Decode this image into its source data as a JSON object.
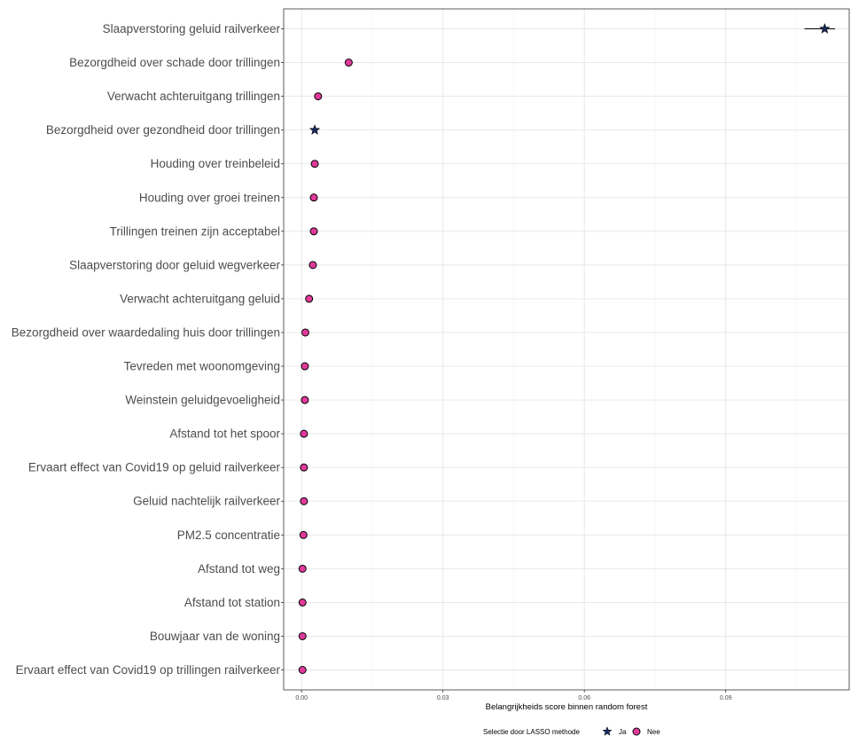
{
  "chart_data": {
    "type": "scatter",
    "xlabel": "Belangrijkheids score binnen random forest",
    "xlim": [
      -0.0038,
      0.1162
    ],
    "x_ticks": [
      0.0,
      0.03,
      0.06,
      0.09
    ],
    "x_tick_labels": [
      "0.00",
      "0.03",
      "0.06",
      "0.09"
    ],
    "grid": true,
    "legend": {
      "title": "Selectie door LASSO methode",
      "position": "bottom",
      "entries": [
        {
          "label": "Ja",
          "shape": "star",
          "color": "#1b2a5e"
        },
        {
          "label": "Nee",
          "shape": "circle",
          "color": "#e0399a"
        }
      ]
    },
    "points": [
      {
        "label": "Slaapverstoring geluid railverkeer",
        "x": 0.111,
        "lasso": "Ja",
        "err": [
          0.1067,
          0.1132
        ]
      },
      {
        "label": "Bezorgdheid over schade door trillingen",
        "x": 0.01,
        "lasso": "Nee"
      },
      {
        "label": "Verwacht achteruitgang trillingen",
        "x": 0.0035,
        "lasso": "Nee"
      },
      {
        "label": "Bezorgdheid over gezondheid door trillingen",
        "x": 0.0028,
        "lasso": "Ja"
      },
      {
        "label": "Houding over treinbeleid",
        "x": 0.0028,
        "lasso": "Nee"
      },
      {
        "label": "Houding over groei treinen",
        "x": 0.0026,
        "lasso": "Nee"
      },
      {
        "label": "Trillingen treinen zijn acceptabel",
        "x": 0.0026,
        "lasso": "Nee"
      },
      {
        "label": "Slaapverstoring door geluid wegverkeer",
        "x": 0.0024,
        "lasso": "Nee"
      },
      {
        "label": "Verwacht achteruitgang geluid",
        "x": 0.0016,
        "lasso": "Nee"
      },
      {
        "label": "Bezorgdheid over waardedaling huis door trillingen",
        "x": 0.0008,
        "lasso": "Nee"
      },
      {
        "label": "Tevreden met woonomgeving",
        "x": 0.0007,
        "lasso": "Nee"
      },
      {
        "label": "Weinstein geluidgevoeligheid",
        "x": 0.0007,
        "lasso": "Nee"
      },
      {
        "label": "Afstand tot het spoor",
        "x": 0.0005,
        "lasso": "Nee"
      },
      {
        "label": "Ervaart effect van Covid19 op geluid railverkeer",
        "x": 0.0005,
        "lasso": "Nee"
      },
      {
        "label": "Geluid nachtelijk railverkeer",
        "x": 0.0005,
        "lasso": "Nee"
      },
      {
        "label": "PM2.5 concentratie",
        "x": 0.0004,
        "lasso": "Nee"
      },
      {
        "label": "Afstand tot weg",
        "x": 0.0002,
        "lasso": "Nee"
      },
      {
        "label": "Afstand tot station",
        "x": 0.0002,
        "lasso": "Nee"
      },
      {
        "label": "Bouwjaar van de woning",
        "x": 0.0002,
        "lasso": "Nee"
      },
      {
        "label": "Ervaart effect van Covid19 op trillingen railverkeer",
        "x": 0.0002,
        "lasso": "Nee"
      }
    ]
  }
}
